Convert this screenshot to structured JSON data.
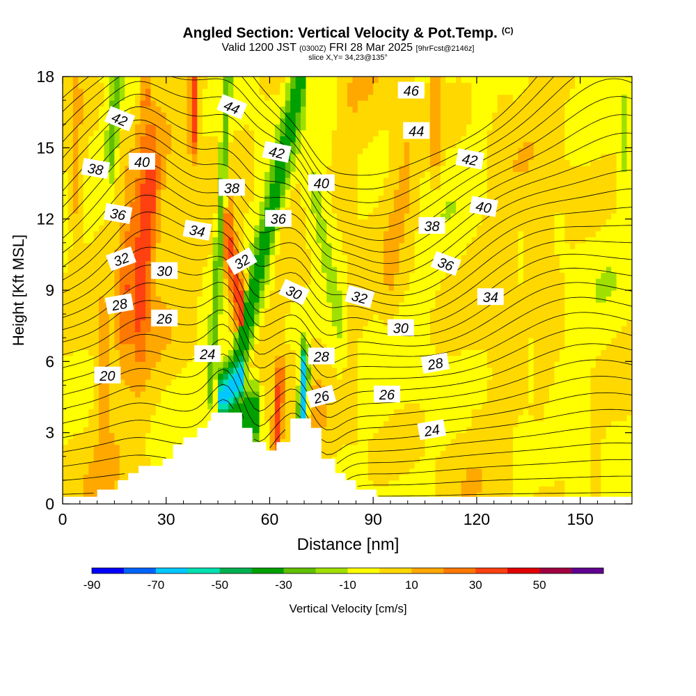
{
  "header": {
    "title": "Angled Section: Vertical Velocity & Pot.Temp.",
    "title_mark": "(C)",
    "valid_prefix": "Valid 1200 JST",
    "valid_utc": "(0300Z)",
    "valid_date": "FRI 28 Mar 2025",
    "forecast": "[9hrFcst@2146z]",
    "slice": "slice X,Y= 34,23@135°"
  },
  "chart_data": {
    "type": "heatmap",
    "title": "Angled Section: Vertical Velocity & Pot.Temp.",
    "xlabel": "Distance [nm]",
    "ylabel": "Height [Kft MSL]",
    "xlim": [
      0,
      165
    ],
    "ylim": [
      0,
      18
    ],
    "x_ticks": [
      "0",
      "30",
      "60",
      "90",
      "120",
      "150"
    ],
    "y_ticks": [
      "0",
      "3",
      "6",
      "9",
      "12",
      "15",
      "18"
    ],
    "colorbar": {
      "label": "Vertical Velocity [cm/s]",
      "tick_labels": [
        "-90",
        "-70",
        "-50",
        "-30",
        "-10",
        "10",
        "30",
        "50"
      ],
      "boundaries": [
        -90,
        -80,
        -70,
        -60,
        -50,
        -40,
        -30,
        -20,
        -10,
        0,
        10,
        20,
        30,
        40,
        50,
        60
      ],
      "colors": [
        "#0000ff",
        "#0064ff",
        "#00c8ff",
        "#00e0b0",
        "#00b050",
        "#00a000",
        "#60c000",
        "#a0e000",
        "#ffff00",
        "#ffd800",
        "#ffa800",
        "#ff7800",
        "#ff4010",
        "#e00000",
        "#a00040",
        "#600090"
      ]
    },
    "terrain": [
      {
        "x": 0,
        "h": 0.3
      },
      {
        "x": 10,
        "h": 0.3
      },
      {
        "x": 10,
        "h": 0.6
      },
      {
        "x": 16,
        "h": 0.6
      },
      {
        "x": 16,
        "h": 1.0
      },
      {
        "x": 19,
        "h": 1.0
      },
      {
        "x": 19,
        "h": 1.3
      },
      {
        "x": 22,
        "h": 1.3
      },
      {
        "x": 22,
        "h": 1.6
      },
      {
        "x": 29,
        "h": 1.6
      },
      {
        "x": 29,
        "h": 1.9
      },
      {
        "x": 32,
        "h": 1.9
      },
      {
        "x": 32,
        "h": 2.5
      },
      {
        "x": 35,
        "h": 2.5
      },
      {
        "x": 35,
        "h": 2.8
      },
      {
        "x": 39,
        "h": 2.8
      },
      {
        "x": 39,
        "h": 3.2
      },
      {
        "x": 42,
        "h": 3.2
      },
      {
        "x": 42,
        "h": 3.5
      },
      {
        "x": 43,
        "h": 3.5
      },
      {
        "x": 43,
        "h": 3.85
      },
      {
        "x": 52,
        "h": 3.85
      },
      {
        "x": 52,
        "h": 3.2
      },
      {
        "x": 55,
        "h": 3.2
      },
      {
        "x": 55,
        "h": 2.6
      },
      {
        "x": 59,
        "h": 2.6
      },
      {
        "x": 59,
        "h": 2.25
      },
      {
        "x": 62,
        "h": 2.25
      },
      {
        "x": 62,
        "h": 2.6
      },
      {
        "x": 66,
        "h": 2.6
      },
      {
        "x": 66,
        "h": 3.6
      },
      {
        "x": 72,
        "h": 3.6
      },
      {
        "x": 72,
        "h": 3.2
      },
      {
        "x": 75,
        "h": 3.2
      },
      {
        "x": 75,
        "h": 1.9
      },
      {
        "x": 79,
        "h": 1.9
      },
      {
        "x": 79,
        "h": 1.3
      },
      {
        "x": 82,
        "h": 1.3
      },
      {
        "x": 82,
        "h": 1.0
      },
      {
        "x": 85,
        "h": 1.0
      },
      {
        "x": 85,
        "h": 0.6
      },
      {
        "x": 91,
        "h": 0.6
      },
      {
        "x": 91,
        "h": 0.3
      },
      {
        "x": 165,
        "h": 0.3
      }
    ],
    "contour_labels": [
      {
        "label": "46",
        "x": 101,
        "y": 17.4,
        "angle": 0
      },
      {
        "label": "44",
        "x": 102.5,
        "y": 15.7,
        "angle": 0
      },
      {
        "label": "44",
        "x": 49,
        "y": 16.7,
        "angle": 22
      },
      {
        "label": "42",
        "x": 16.5,
        "y": 16.2,
        "angle": 22
      },
      {
        "label": "42",
        "x": 62,
        "y": 14.8,
        "angle": 12
      },
      {
        "label": "42",
        "x": 118,
        "y": 14.5,
        "angle": 10
      },
      {
        "label": "40",
        "x": 23,
        "y": 14.4,
        "angle": 0
      },
      {
        "label": "40",
        "x": 75,
        "y": 13.5,
        "angle": 0
      },
      {
        "label": "40",
        "x": 122,
        "y": 12.5,
        "angle": 10
      },
      {
        "label": "38",
        "x": 9.5,
        "y": 14.1,
        "angle": 10
      },
      {
        "label": "38",
        "x": 49,
        "y": 13.3,
        "angle": 0
      },
      {
        "label": "38",
        "x": 107,
        "y": 11.7,
        "angle": 0
      },
      {
        "label": "36",
        "x": 16,
        "y": 12.2,
        "angle": 10
      },
      {
        "label": "36",
        "x": 62.5,
        "y": 12.0,
        "angle": 0
      },
      {
        "label": "36",
        "x": 111,
        "y": 10.1,
        "angle": 20
      },
      {
        "label": "34",
        "x": 39,
        "y": 11.5,
        "angle": 10
      },
      {
        "label": "34",
        "x": 124,
        "y": 8.7,
        "angle": 0
      },
      {
        "label": "32",
        "x": 17,
        "y": 10.3,
        "angle": -20
      },
      {
        "label": "32",
        "x": 52,
        "y": 10.2,
        "angle": -30
      },
      {
        "label": "32",
        "x": 86,
        "y": 8.7,
        "angle": 15
      },
      {
        "label": "30",
        "x": 29.5,
        "y": 9.8,
        "angle": 0
      },
      {
        "label": "30",
        "x": 67,
        "y": 8.9,
        "angle": 25
      },
      {
        "label": "30",
        "x": 98,
        "y": 7.4,
        "angle": 0
      },
      {
        "label": "28",
        "x": 16.5,
        "y": 8.4,
        "angle": -10
      },
      {
        "label": "28",
        "x": 75,
        "y": 6.2,
        "angle": 0
      },
      {
        "label": "28",
        "x": 108,
        "y": 5.9,
        "angle": -10
      },
      {
        "label": "26",
        "x": 29.5,
        "y": 7.8,
        "angle": 0
      },
      {
        "label": "26",
        "x": 75,
        "y": 4.5,
        "angle": -15
      },
      {
        "label": "26",
        "x": 94,
        "y": 4.6,
        "angle": 0
      },
      {
        "label": "24",
        "x": 42,
        "y": 6.3,
        "angle": 0
      },
      {
        "label": "24",
        "x": 107,
        "y": 3.1,
        "angle": -10
      },
      {
        "label": "20",
        "x": 13,
        "y": 5.4,
        "angle": 0
      }
    ],
    "theta_levels": [
      19,
      20,
      21,
      22,
      23,
      24,
      25,
      26,
      27,
      28,
      29,
      30,
      31,
      32,
      33,
      34,
      35,
      36,
      37,
      38,
      39,
      40,
      41,
      42,
      43,
      44,
      45,
      46,
      47,
      48
    ],
    "velocity_features": [
      {
        "x0": 48,
        "y0": 4.0,
        "x1": 69,
        "y1": 18,
        "v": -40,
        "w": 2.0
      },
      {
        "x0": 43,
        "y0": 5.0,
        "x1": 48,
        "y1": 18,
        "v": -30,
        "w": 1.4
      },
      {
        "x0": 69,
        "y0": 2.5,
        "x1": 70,
        "y1": 5.5,
        "v": -70,
        "w": 1.6
      },
      {
        "x0": 46,
        "y0": 4.5,
        "x1": 52,
        "y1": 5.5,
        "v": -65,
        "w": 1.6
      },
      {
        "x0": 50,
        "y0": 3.5,
        "x1": 56,
        "y1": 3.8,
        "v": -40,
        "w": 1.8
      },
      {
        "x0": 22,
        "y0": 9,
        "x1": 25,
        "y1": 13,
        "v": 38,
        "w": 4.0
      },
      {
        "x0": 18,
        "y0": 8.5,
        "x1": 21,
        "y1": 11,
        "v": 30,
        "w": 3.5
      },
      {
        "x0": 52,
        "y0": 8,
        "x1": 48,
        "y1": 11,
        "v": 35,
        "w": 2.2
      },
      {
        "x0": 62,
        "y0": 3.0,
        "x1": 63,
        "y1": 5.0,
        "v": 40,
        "w": 1.5
      },
      {
        "x0": 38,
        "y0": 16,
        "x1": 38,
        "y1": 18,
        "v": 38,
        "w": 1.8
      },
      {
        "x0": 24,
        "y0": 17,
        "x1": 24,
        "y1": 18,
        "v": 30,
        "w": 1.5
      },
      {
        "x0": 14,
        "y0": 15,
        "x1": 16,
        "y1": 18,
        "v": -30,
        "w": 1.8
      },
      {
        "x0": 72,
        "y0": 13,
        "x1": 77,
        "y1": 18,
        "v": -10,
        "w": 3.5
      },
      {
        "x0": 80,
        "y0": 8,
        "x1": 73,
        "y1": 13,
        "v": -12,
        "w": 3.5
      },
      {
        "x0": 12,
        "y0": 1.5,
        "x1": 12,
        "y1": 7,
        "v": 12,
        "w": 3.5
      },
      {
        "x0": 4,
        "y0": 13,
        "x1": 4,
        "y1": 17,
        "v": 12,
        "w": 3.0
      },
      {
        "x0": 108,
        "y0": 15,
        "x1": 108,
        "y1": 17.5,
        "v": 18,
        "w": 2.0
      },
      {
        "x0": 95,
        "y0": 10.5,
        "x1": 100,
        "y1": 14,
        "v": 12,
        "w": 4.0
      },
      {
        "x0": 138,
        "y0": 6.5,
        "x1": 138,
        "y1": 14,
        "v": 10,
        "w": 4.5
      },
      {
        "x0": 128,
        "y0": 11,
        "x1": 128,
        "y1": 14.5,
        "v": 10,
        "w": 3.5
      },
      {
        "x0": 163,
        "y0": 14.5,
        "x1": 163,
        "y1": 16.5,
        "v": -12,
        "w": 2.0
      },
      {
        "x0": 136,
        "y0": 5.0,
        "x1": 136,
        "y1": 6.0,
        "v": -10,
        "w": 1.5
      },
      {
        "x0": 155,
        "y0": 0.5,
        "x1": 155,
        "y1": 2.3,
        "v": 10,
        "w": 1.8
      },
      {
        "x0": 147,
        "y0": 0.3,
        "x1": 147,
        "y1": 1.6,
        "v": -9,
        "w": 1.5
      },
      {
        "x0": 120,
        "y0": 1.0,
        "x1": 120,
        "y1": 2.3,
        "v": 10,
        "w": 1.6
      }
    ]
  }
}
